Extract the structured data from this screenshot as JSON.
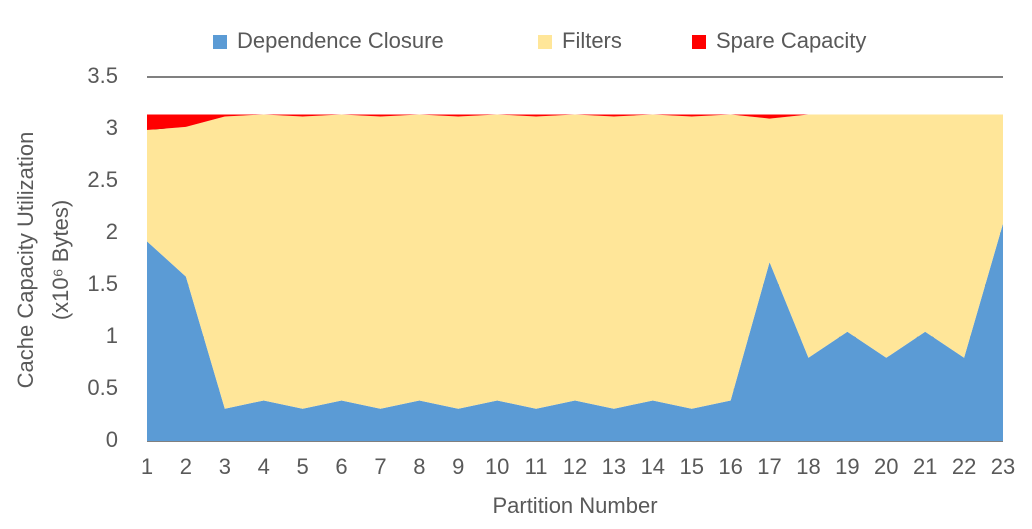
{
  "chart_data": {
    "type": "stacked_area",
    "y_label": [
      "Cache Capacity Utilization",
      "(x10⁶ Bytes)"
    ],
    "x_label": "Partition Number",
    "categories": [
      "1",
      "2",
      "3",
      "4",
      "5",
      "6",
      "7",
      "8",
      "9",
      "10",
      "11",
      "12",
      "13",
      "14",
      "15",
      "16",
      "17",
      "18",
      "19",
      "20",
      "21",
      "22",
      "23"
    ],
    "series": [
      {
        "name": "Dependence Closure",
        "color": "#5b9bd5",
        "values": [
          1.92,
          1.58,
          0.31,
          0.39,
          0.31,
          0.39,
          0.31,
          0.39,
          0.31,
          0.39,
          0.31,
          0.39,
          0.31,
          0.39,
          0.31,
          0.39,
          1.72,
          0.8,
          1.05,
          0.8,
          1.05,
          0.8,
          2.09
        ]
      },
      {
        "name": "Filters",
        "color": "#ffe699",
        "values": [
          1.07,
          1.44,
          2.81,
          2.75,
          2.81,
          2.75,
          2.81,
          2.75,
          2.81,
          2.75,
          2.81,
          2.75,
          2.81,
          2.75,
          2.81,
          2.75,
          1.38,
          2.34,
          2.09,
          2.34,
          2.09,
          2.34,
          1.05
        ]
      },
      {
        "name": "Spare Capacity",
        "color": "#ff0000",
        "values": [
          0.15,
          0.12,
          0.02,
          0,
          0.02,
          0,
          0.02,
          0,
          0.02,
          0,
          0.02,
          0,
          0.02,
          0,
          0.02,
          0,
          0.04,
          0,
          0,
          0,
          0,
          0,
          0
        ]
      }
    ],
    "ylim": [
      0,
      3.5
    ],
    "yticks": [
      0,
      0.5,
      1,
      1.5,
      2,
      2.5,
      3,
      3.5
    ],
    "grid": true,
    "legend": "top"
  }
}
